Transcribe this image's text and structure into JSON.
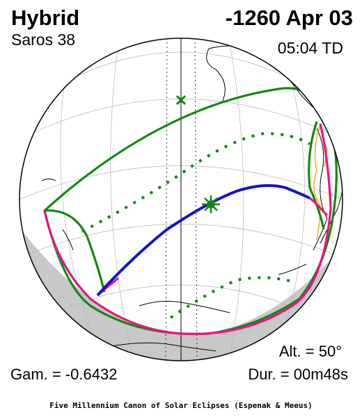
{
  "header": {
    "eclipse_type": "Hybrid",
    "saros": "Saros  38",
    "date": "-1260 Apr 03",
    "time": "05:04 TD"
  },
  "footer": {
    "altitude": "Alt. = 50°",
    "gamma": "Gam. = -0.6432",
    "duration": "Dur. = 00m48s",
    "credit": "Five Millennium Canon of Solar Eclipses (Espenak & Meeus)"
  },
  "colors": {
    "penumbra_limits": "#118811",
    "rise_set_curves": "#ee1188",
    "central_path": "#1111cc",
    "night_side": "#c8c8c8",
    "coastline": "#000000",
    "political_borders": "#f0a000"
  },
  "icons": {
    "greatest_eclipse": "star-marker",
    "sub_solar_point": "x-marker"
  }
}
